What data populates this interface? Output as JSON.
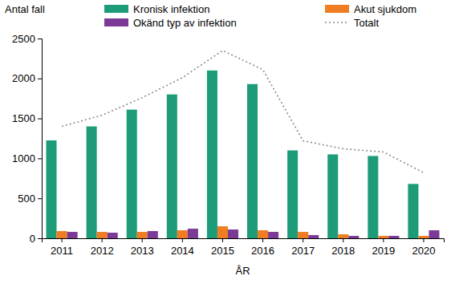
{
  "chart_data": {
    "type": "bar",
    "x_label": "ÅR",
    "y_label": "Antal fall",
    "categories": [
      "2011",
      "2012",
      "2013",
      "2014",
      "2015",
      "2016",
      "2017",
      "2018",
      "2019",
      "2020"
    ],
    "series": [
      {
        "name": "Kronisk infektion",
        "color": "#1e9c7a",
        "values": [
          1225,
          1400,
          1610,
          1800,
          2100,
          1930,
          1100,
          1050,
          1030,
          680
        ]
      },
      {
        "name": "Akut sjukdom",
        "color": "#f07d22",
        "values": [
          90,
          80,
          80,
          100,
          150,
          100,
          80,
          50,
          30,
          30
        ]
      },
      {
        "name": "Okänd typ av infektion",
        "color": "#7b3a96",
        "values": [
          80,
          70,
          90,
          120,
          110,
          80,
          40,
          30,
          30,
          100
        ]
      },
      {
        "name": "Totalt",
        "color": "#8c8c8c",
        "type": "line",
        "line_style": "dotted",
        "values": [
          1400,
          1540,
          1760,
          2010,
          2350,
          2110,
          1220,
          1120,
          1080,
          820
        ]
      }
    ],
    "ylim": [
      0,
      2500
    ],
    "yticks": [
      0,
      500,
      1000,
      1500,
      2000,
      2500
    ],
    "grid": false,
    "legend": "top"
  }
}
